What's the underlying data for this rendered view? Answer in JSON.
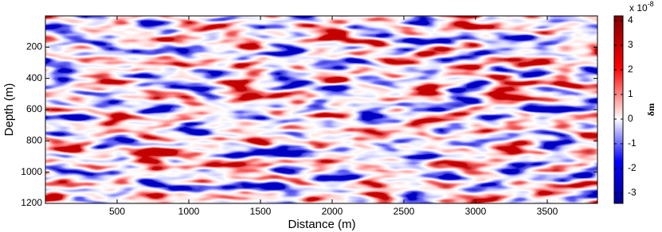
{
  "chart_data": {
    "type": "heatmap",
    "xlabel": "Distance (m)",
    "ylabel": "Depth (m)",
    "xlim": [
      0,
      3850
    ],
    "xticks": [
      500,
      1000,
      1500,
      2000,
      2500,
      3000,
      3500
    ],
    "ylim": [
      0,
      1200
    ],
    "y_reversed": true,
    "yticks": [
      200,
      400,
      600,
      800,
      1000,
      1200
    ],
    "colorbar": {
      "label": "δm",
      "scale_label": "x 10",
      "scale_exponent": -8,
      "clim": [
        -3.42,
        4.19
      ],
      "ticks": [
        -3,
        -2,
        -1,
        0,
        1,
        2,
        3,
        4
      ],
      "colormap": [
        "#00008f",
        "#0000ff",
        "#ffffff",
        "#ff0000",
        "#800000"
      ]
    }
  }
}
